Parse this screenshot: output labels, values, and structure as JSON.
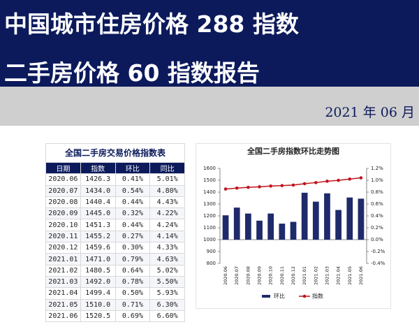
{
  "header": {
    "title_line1": "中国城市住房价格 288 指数",
    "title_line2": "二手房价格 60 指数报告",
    "date": "2021 年 06 月"
  },
  "table": {
    "title": "全国二手房交易价格指数表",
    "columns": [
      "日期",
      "指数",
      "环比",
      "同比"
    ],
    "rows": [
      [
        "2020.06",
        "1426.3",
        "0.41%",
        "5.01%"
      ],
      [
        "2020.07",
        "1434.0",
        "0.54%",
        "4.80%"
      ],
      [
        "2020.08",
        "1440.4",
        "0.44%",
        "4.43%"
      ],
      [
        "2020.09",
        "1445.0",
        "0.32%",
        "4.22%"
      ],
      [
        "2020.10",
        "1451.3",
        "0.44%",
        "4.24%"
      ],
      [
        "2020.11",
        "1455.2",
        "0.27%",
        "4.14%"
      ],
      [
        "2020.12",
        "1459.6",
        "0.30%",
        "4.33%"
      ],
      [
        "2021.01",
        "1471.0",
        "0.79%",
        "4.63%"
      ],
      [
        "2021.02",
        "1480.5",
        "0.64%",
        "5.02%"
      ],
      [
        "2021.03",
        "1492.0",
        "0.78%",
        "5.50%"
      ],
      [
        "2021.04",
        "1499.4",
        "0.50%",
        "5.93%"
      ],
      [
        "2021.05",
        "1510.0",
        "0.71%",
        "6.30%"
      ],
      [
        "2021.06",
        "1520.5",
        "0.69%",
        "6.60%"
      ]
    ]
  },
  "chart_data": {
    "type": "bar",
    "title": "全国二手房指数环比走势图",
    "categories": [
      "2020.06",
      "2020.07",
      "2020.08",
      "2020.09",
      "2020.10",
      "2020.11",
      "2020.12",
      "2021.01",
      "2021.02",
      "2021.03",
      "2021.04",
      "2021.05",
      "2021.06"
    ],
    "series": [
      {
        "name": "环比",
        "type": "bar",
        "axis": "y2",
        "color": "#1f2a6b",
        "values": [
          0.41,
          0.54,
          0.44,
          0.32,
          0.44,
          0.27,
          0.3,
          0.79,
          0.64,
          0.78,
          0.5,
          0.71,
          0.69
        ]
      },
      {
        "name": "指数",
        "type": "line",
        "color": "#c0141c",
        "values": [
          1426.3,
          1434.0,
          1440.4,
          1445.0,
          1451.3,
          1455.2,
          1459.6,
          1471.0,
          1480.5,
          1492.0,
          1499.4,
          1510.0,
          1520.5
        ]
      }
    ],
    "ylim": [
      800,
      1600
    ],
    "yticks": [
      800,
      900,
      1000,
      1100,
      1200,
      1300,
      1400,
      1500,
      1600
    ],
    "y2lim": [
      -0.4,
      1.2
    ],
    "y2ticks": [
      {
        "value": -0.4,
        "label": "-0.4%"
      },
      {
        "value": -0.2,
        "label": "-0.2%"
      },
      {
        "value": 0,
        "label": "0.0%"
      },
      {
        "value": 0.2,
        "label": "0.2%"
      },
      {
        "value": 0.4,
        "label": "0.4%"
      },
      {
        "value": 0.6,
        "label": "0.6%"
      },
      {
        "value": 0.8,
        "label": "0.8%"
      },
      {
        "value": 1.0,
        "label": "1.0%"
      },
      {
        "value": 1.2,
        "label": "1.2%"
      }
    ],
    "legend": "bottom"
  }
}
